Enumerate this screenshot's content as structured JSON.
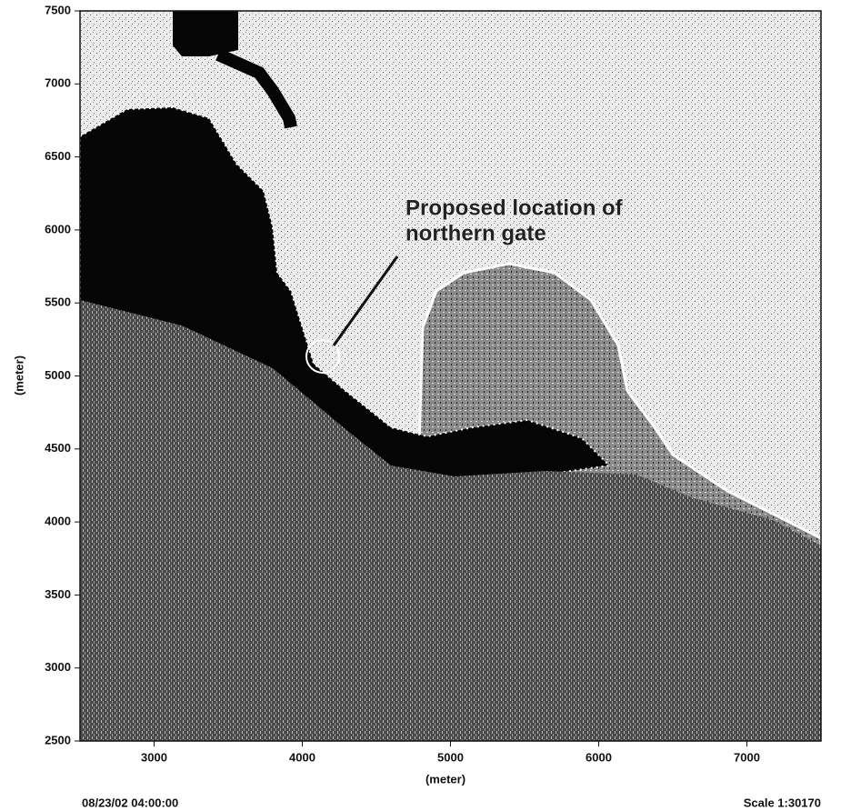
{
  "chart_data": {
    "type": "map",
    "xlabel": "(meter)",
    "ylabel": "(meter)",
    "xlim": [
      2500,
      7500
    ],
    "ylim": [
      2500,
      7500
    ],
    "xticks": [
      3000,
      4000,
      5000,
      6000,
      7000
    ],
    "yticks": [
      2500,
      3000,
      3500,
      4000,
      4500,
      5000,
      5500,
      6000,
      6500,
      7000,
      7500
    ],
    "annotation": [
      "Proposed location of",
      "northern gate"
    ],
    "timestamp": "08/23/02 04:00:00",
    "scale": "Scale 1:30170"
  }
}
